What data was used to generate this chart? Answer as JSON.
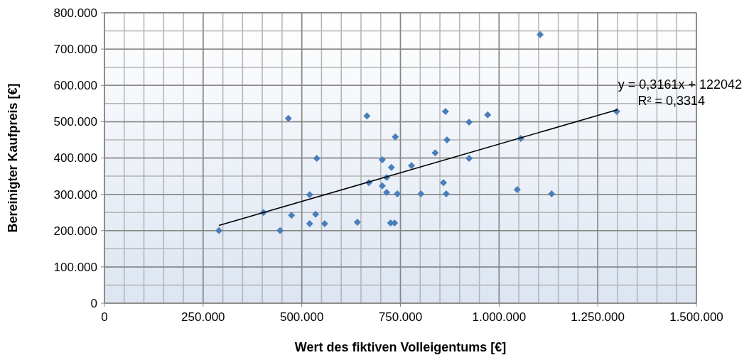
{
  "chart_data": {
    "type": "scatter",
    "xlabel": "Wert des fiktiven Volleigentums  [€]",
    "ylabel": "Bereinigter  Kaufpreis [€]",
    "xlim": [
      0,
      1500000
    ],
    "xticks": [
      {
        "value": 0,
        "label": "0"
      },
      {
        "value": 250000,
        "label": "250.000"
      },
      {
        "value": 500000,
        "label": "500.000"
      },
      {
        "value": 750000,
        "label": "750.000"
      },
      {
        "value": 1000000,
        "label": "1.000.000"
      },
      {
        "value": 1250000,
        "label": "1.250.000"
      },
      {
        "value": 1500000,
        "label": "1.500.000"
      }
    ],
    "ylim": [
      0,
      800000
    ],
    "yticks": [
      {
        "value": 0,
        "label": "0"
      },
      {
        "value": 100000,
        "label": "100.000"
      },
      {
        "value": 200000,
        "label": "200.000"
      },
      {
        "value": 300000,
        "label": "300.000"
      },
      {
        "value": 400000,
        "label": "400.000"
      },
      {
        "value": 500000,
        "label": "500.000"
      },
      {
        "value": 600000,
        "label": "600.000"
      },
      {
        "value": 700000,
        "label": "700.000"
      },
      {
        "value": 800000,
        "label": "800.000"
      }
    ],
    "grid": true,
    "series": [
      {
        "color": "#4a7ebb",
        "marker": "diamond",
        "x": [
          290000,
          403000,
          466000,
          474000,
          445000,
          520000,
          520000,
          538000,
          535000,
          558000,
          641000,
          665000,
          670000,
          704000,
          704000,
          715000,
          715000,
          727000,
          725000,
          735000,
          737000,
          742000,
          778000,
          802000,
          838000,
          859000,
          864000,
          868000,
          866000,
          924000,
          971000,
          924000,
          1055000,
          1046000,
          1133000,
          1298000,
          1104000
        ],
        "values": [
          200000,
          250000,
          509000,
          242000,
          200000,
          219000,
          299000,
          399000,
          245000,
          219000,
          223000,
          516000,
          332000,
          395000,
          323000,
          346000,
          305000,
          374000,
          221000,
          221000,
          458000,
          301000,
          379000,
          301000,
          414000,
          332000,
          528000,
          450000,
          301000,
          499000,
          519000,
          399000,
          454000,
          313000,
          301000,
          528000,
          740000
        ]
      },
      {
        "type": "line",
        "color": "#000000",
        "x": [
          290000,
          1300000
        ],
        "values": [
          214000,
          533000
        ]
      }
    ],
    "annotations": [
      "y = 0,3161x + 122042",
      "R² = 0,3314"
    ]
  }
}
